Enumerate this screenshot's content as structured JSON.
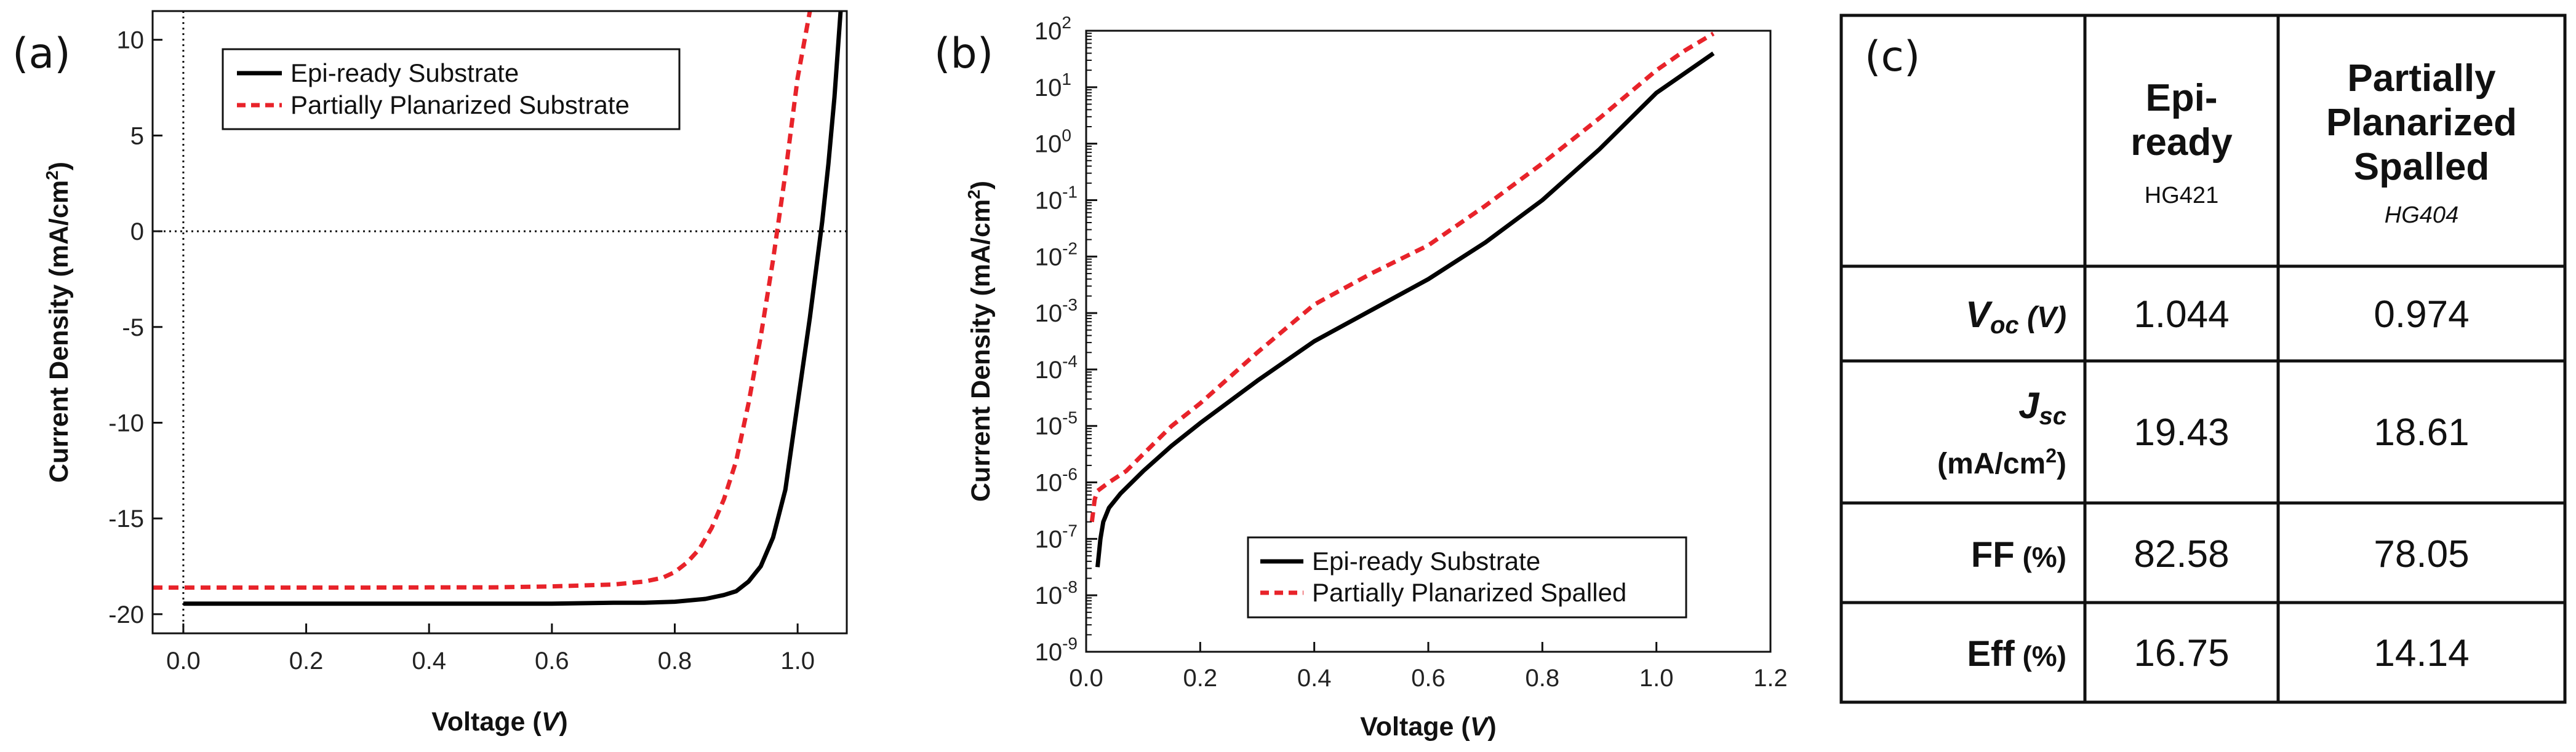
{
  "chart_data": [
    {
      "panel": "(a)",
      "type": "line",
      "xlabel": "Voltage (V)",
      "xlabel_prefix": "Voltage (",
      "xlabel_var": "V",
      "xlabel_suffix": ")",
      "ylabel": "Current Density (mA/cm2)",
      "ylabel_main": "Current Density (mA/cm",
      "ylabel_sup": "2",
      "ylabel_end": ")",
      "xlim": [
        -0.05,
        1.08
      ],
      "ylim": [
        -21,
        11.5
      ],
      "xticks": [
        0.0,
        0.2,
        0.4,
        0.6,
        0.8,
        1.0
      ],
      "xtick_labels": [
        "0.0",
        "0.2",
        "0.4",
        "0.6",
        "0.8",
        "1.0"
      ],
      "yticks": [
        10,
        5,
        0,
        -5,
        -10,
        -15,
        -20
      ],
      "ytick_labels": [
        "10",
        "5",
        "0",
        "-5",
        "-10",
        "-15",
        "-20"
      ],
      "reference_lines": {
        "x": 0,
        "y": 0,
        "style": "dotted"
      },
      "legend_position": "top-left",
      "series": [
        {
          "name": "Epi-ready Substrate",
          "color": "#000000",
          "style": "solid",
          "x": [
            0.0,
            0.1,
            0.2,
            0.3,
            0.4,
            0.5,
            0.6,
            0.7,
            0.75,
            0.8,
            0.85,
            0.88,
            0.9,
            0.92,
            0.94,
            0.96,
            0.98,
            1.0,
            1.02,
            1.03,
            1.04,
            1.05,
            1.06,
            1.07
          ],
          "y": [
            -19.45,
            -19.45,
            -19.45,
            -19.45,
            -19.45,
            -19.45,
            -19.45,
            -19.4,
            -19.4,
            -19.35,
            -19.2,
            -19.0,
            -18.8,
            -18.3,
            -17.5,
            -16.0,
            -13.5,
            -9.0,
            -4.5,
            -2.0,
            0.5,
            3.5,
            7.0,
            11.5
          ]
        },
        {
          "name": "Partially Planarized Substrate",
          "color": "#e8232a",
          "style": "dashed",
          "x": [
            -0.05,
            0.1,
            0.2,
            0.3,
            0.4,
            0.5,
            0.6,
            0.7,
            0.75,
            0.78,
            0.8,
            0.82,
            0.84,
            0.86,
            0.88,
            0.9,
            0.92,
            0.94,
            0.96,
            0.98,
            1.0,
            1.02
          ],
          "y": [
            -18.61,
            -18.61,
            -18.61,
            -18.61,
            -18.6,
            -18.6,
            -18.55,
            -18.45,
            -18.3,
            -18.1,
            -17.8,
            -17.3,
            -16.6,
            -15.5,
            -14.0,
            -12.0,
            -9.0,
            -5.5,
            -1.5,
            3.0,
            8.0,
            11.5
          ]
        }
      ]
    },
    {
      "panel": "(b)",
      "type": "line",
      "yscale": "log",
      "xlabel": "Voltage (V)",
      "xlabel_prefix": "Voltage (",
      "xlabel_var": "V",
      "xlabel_suffix": ")",
      "ylabel": "Current Density (mA/cm2)",
      "ylabel_main": "Current Density (mA/cm",
      "ylabel_sup": "2",
      "ylabel_end": ")",
      "xlim": [
        0.0,
        1.2
      ],
      "ylim_exp": [
        -9,
        2
      ],
      "xticks": [
        0.0,
        0.2,
        0.4,
        0.6,
        0.8,
        1.0,
        1.2
      ],
      "xtick_labels": [
        "0.0",
        "0.2",
        "0.4",
        "0.6",
        "0.8",
        "1.0",
        "1.2"
      ],
      "ytick_exponents": [
        2,
        1,
        0,
        -1,
        -2,
        -3,
        -4,
        -5,
        -6,
        -7,
        -8,
        -9
      ],
      "ytick_base": "10",
      "ytick_exp_labels": [
        "2",
        "1",
        "0",
        "-1",
        "-2",
        "-3",
        "-4",
        "-5",
        "-6",
        "-7",
        "-8",
        "-9"
      ],
      "legend_position": "bottom-right",
      "series": [
        {
          "name": "Epi-ready Substrate",
          "color": "#000000",
          "style": "solid",
          "x": [
            0.02,
            0.025,
            0.03,
            0.04,
            0.06,
            0.1,
            0.15,
            0.2,
            0.3,
            0.4,
            0.5,
            0.6,
            0.7,
            0.8,
            0.9,
            1.0,
            1.05,
            1.1
          ],
          "log10y": [
            -7.5,
            -7.0,
            -6.7,
            -6.45,
            -6.2,
            -5.8,
            -5.35,
            -4.95,
            -4.2,
            -3.5,
            -2.95,
            -2.4,
            -1.75,
            -1.0,
            -0.1,
            0.9,
            1.25,
            1.6
          ]
        },
        {
          "name": "Partially Planarized Spalled",
          "color": "#e8232a",
          "style": "dashed",
          "x": [
            0.01,
            0.015,
            0.02,
            0.04,
            0.07,
            0.1,
            0.15,
            0.2,
            0.3,
            0.4,
            0.5,
            0.6,
            0.7,
            0.8,
            0.9,
            1.0,
            1.05,
            1.1
          ],
          "log10y": [
            -6.7,
            -6.3,
            -6.15,
            -6.0,
            -5.8,
            -5.5,
            -5.0,
            -4.6,
            -3.7,
            -2.85,
            -2.3,
            -1.8,
            -1.1,
            -0.35,
            0.45,
            1.3,
            1.65,
            1.95
          ]
        }
      ]
    },
    {
      "panel": "(c)",
      "type": "table",
      "columns": [
        {
          "title_lines": [
            "Epi-",
            "ready"
          ],
          "sample": "HG421"
        },
        {
          "title_lines": [
            "Partially",
            "Planarized",
            "Spalled"
          ],
          "sample": "HG404"
        }
      ],
      "rows": [
        {
          "label_main": "V",
          "label_sub": "oc",
          "label_unit": " (V)",
          "values": [
            "1.044",
            "0.974"
          ]
        },
        {
          "label_main": "J",
          "label_sub": "sc",
          "label_unit_main": "(mA/cm",
          "label_unit_sup": "2",
          "label_unit_end": ")",
          "values": [
            "19.43",
            "18.61"
          ]
        },
        {
          "label_main": "FF",
          "label_unit": " (%)",
          "values": [
            "82.58",
            "78.05"
          ]
        },
        {
          "label_main": "Eff",
          "label_unit": " (%)",
          "values": [
            "16.75",
            "14.14"
          ]
        }
      ]
    }
  ]
}
